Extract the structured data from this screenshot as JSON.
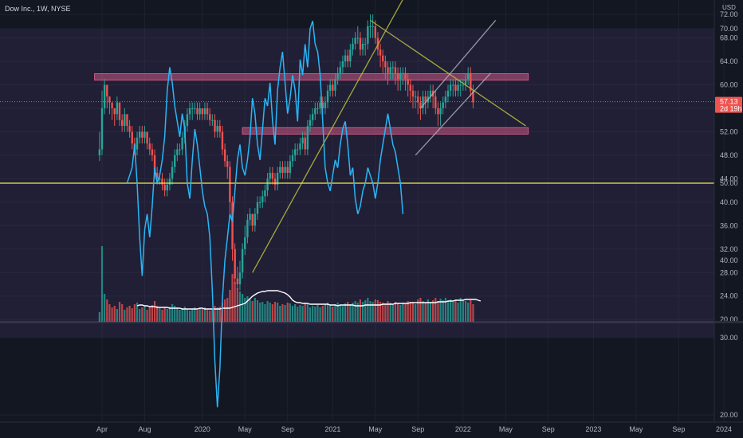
{
  "title": "Dow Inc., 1W, NYSE",
  "currency": "USD",
  "last_price": {
    "value": "57.13",
    "countdown": "2d 19h"
  },
  "colors": {
    "background": "#131722",
    "grid": "#1e222d",
    "up": "#26a69a",
    "down": "#ef5350",
    "zone": "#f06292",
    "trend": "#b5b83c",
    "channel": "#b4b7bf",
    "ma": "#ffffff",
    "rsi": "#29b6f6",
    "rsi_mid": "#f5e94b",
    "rsi_band": "#7e57c2"
  },
  "chart_data": [
    {
      "type": "candlestick",
      "x_tick_labels": [
        "Apr",
        "Aug",
        "2020",
        "May",
        "Sep",
        "2021",
        "May",
        "Sep",
        "2022",
        "May",
        "Sep",
        "2023",
        "May",
        "Sep",
        "2024"
      ],
      "x_tick_weeks": [
        0,
        17,
        40,
        57,
        74,
        92,
        109,
        126,
        144,
        161,
        178,
        196,
        213,
        230,
        248
      ],
      "y_ticks": [
        "72.00",
        "68.00",
        "64.00",
        "60.00",
        "56.00",
        "52.00",
        "48.00",
        "44.00",
        "40.00",
        "36.00",
        "32.00",
        "28.00",
        "24.00",
        "20.00"
      ],
      "ylim": [
        18,
        74
      ],
      "grid": true,
      "series": [
        {
          "name": "price",
          "x_start_week": -1,
          "close": [
            49,
            56,
            60,
            58,
            57,
            56,
            55,
            57,
            54,
            53,
            55,
            53,
            52,
            50,
            49,
            51,
            52,
            51,
            52,
            50,
            49,
            48,
            45,
            44,
            44,
            43,
            42,
            43,
            44,
            46,
            48,
            49,
            49,
            51,
            53,
            55,
            56,
            56,
            56,
            55,
            56,
            55,
            56,
            55,
            54,
            54,
            52,
            53,
            52,
            49,
            47,
            46,
            40,
            32,
            27,
            26,
            28,
            32,
            34,
            37,
            38,
            36,
            38,
            40,
            40,
            41,
            42,
            44,
            45,
            44,
            43,
            45,
            46,
            45,
            46,
            45,
            47,
            48,
            49,
            49,
            50,
            51,
            49,
            53,
            54,
            55,
            56,
            56,
            57,
            56,
            57,
            59,
            60,
            59,
            61,
            62,
            63,
            64,
            65,
            64,
            66,
            67,
            68,
            68,
            66,
            67,
            67,
            70,
            70,
            70,
            68,
            66,
            65,
            64,
            63,
            62,
            63,
            63,
            62,
            61,
            62,
            62,
            61,
            60,
            59,
            58,
            58,
            57,
            56,
            58,
            57,
            58,
            59,
            58,
            56,
            55,
            56,
            57,
            58,
            59,
            60,
            60,
            59,
            60,
            60,
            60,
            61,
            62,
            59,
            57
          ],
          "wick_high": [
            52,
            59,
            61,
            60,
            58,
            57,
            56,
            58,
            57,
            55,
            56,
            55,
            54,
            53,
            51,
            52,
            53,
            53,
            53,
            52,
            51,
            50,
            49,
            46,
            45,
            45,
            44,
            44,
            45,
            47,
            49,
            50,
            50,
            52,
            54,
            56,
            57,
            57,
            57,
            57,
            57,
            56,
            57,
            57,
            56,
            55,
            55,
            54,
            54,
            53,
            50,
            48,
            47,
            41,
            33,
            29,
            30,
            33,
            36,
            38,
            39,
            38,
            39,
            41,
            41,
            42,
            43,
            45,
            46,
            46,
            45,
            46,
            47,
            47,
            47,
            47,
            48,
            49,
            50,
            50,
            51,
            52,
            52,
            54,
            55,
            56,
            57,
            57,
            58,
            58,
            58,
            60,
            61,
            61,
            62,
            63,
            64,
            65,
            66,
            66,
            67,
            68,
            69,
            70,
            69,
            68,
            68,
            71,
            72,
            72,
            71,
            69,
            67,
            66,
            65,
            64,
            64,
            64,
            64,
            63,
            63,
            63,
            63,
            62,
            61,
            60,
            59,
            59,
            58,
            59,
            59,
            59,
            60,
            60,
            59,
            57,
            57,
            58,
            59,
            60,
            61,
            61,
            61,
            61,
            61,
            61,
            62,
            63,
            63,
            60
          ],
          "wick_low": [
            47,
            48,
            55,
            56,
            55,
            54,
            53,
            54,
            53,
            52,
            52,
            52,
            51,
            49,
            48,
            48,
            50,
            50,
            50,
            49,
            48,
            47,
            44,
            43,
            43,
            42,
            41,
            41,
            42,
            43,
            45,
            47,
            48,
            48,
            50,
            52,
            54,
            54,
            55,
            54,
            54,
            54,
            54,
            54,
            53,
            53,
            51,
            51,
            51,
            48,
            46,
            44,
            38,
            30,
            26,
            25,
            25,
            27,
            31,
            33,
            36,
            35,
            35,
            37,
            39,
            39,
            40,
            41,
            43,
            43,
            42,
            42,
            44,
            44,
            44,
            44,
            44,
            46,
            47,
            48,
            48,
            49,
            48,
            48,
            52,
            53,
            54,
            55,
            55,
            55,
            55,
            56,
            58,
            58,
            58,
            60,
            61,
            62,
            63,
            63,
            63,
            65,
            66,
            67,
            65,
            65,
            65,
            66,
            68,
            68,
            67,
            65,
            63,
            62,
            61,
            60,
            61,
            61,
            60,
            59,
            59,
            60,
            59,
            58,
            57,
            56,
            56,
            55,
            54,
            55,
            55,
            56,
            57,
            56,
            55,
            53,
            53,
            55,
            56,
            57,
            58,
            58,
            58,
            58,
            58,
            59,
            59,
            60,
            58,
            56
          ]
        },
        {
          "name": "volume",
          "values": [
            0.12,
            0.95,
            0.35,
            0.28,
            0.22,
            0.18,
            0.2,
            0.16,
            0.25,
            0.22,
            0.15,
            0.18,
            0.2,
            0.17,
            0.22,
            0.24,
            0.16,
            0.18,
            0.2,
            0.15,
            0.19,
            0.21,
            0.26,
            0.2,
            0.17,
            0.15,
            0.18,
            0.16,
            0.19,
            0.22,
            0.2,
            0.18,
            0.15,
            0.17,
            0.19,
            0.16,
            0.14,
            0.16,
            0.18,
            0.15,
            0.17,
            0.16,
            0.18,
            0.15,
            0.14,
            0.16,
            0.2,
            0.18,
            0.19,
            0.24,
            0.28,
            0.3,
            0.4,
            0.6,
            0.5,
            0.42,
            0.38,
            0.35,
            0.3,
            0.32,
            0.28,
            0.26,
            0.3,
            0.27,
            0.24,
            0.25,
            0.22,
            0.26,
            0.24,
            0.22,
            0.25,
            0.24,
            0.2,
            0.22,
            0.21,
            0.24,
            0.23,
            0.2,
            0.22,
            0.19,
            0.21,
            0.2,
            0.24,
            0.22,
            0.18,
            0.2,
            0.19,
            0.21,
            0.18,
            0.2,
            0.22,
            0.24,
            0.21,
            0.19,
            0.22,
            0.24,
            0.21,
            0.2,
            0.23,
            0.25,
            0.22,
            0.24,
            0.26,
            0.24,
            0.28,
            0.25,
            0.27,
            0.3,
            0.26,
            0.25,
            0.28,
            0.27,
            0.25,
            0.24,
            0.23,
            0.26,
            0.24,
            0.22,
            0.25,
            0.23,
            0.21,
            0.24,
            0.22,
            0.26,
            0.25,
            0.24,
            0.22,
            0.28,
            0.3,
            0.26,
            0.24,
            0.28,
            0.25,
            0.27,
            0.3,
            0.26,
            0.29,
            0.27,
            0.3,
            0.26,
            0.28,
            0.25,
            0.27,
            0.24,
            0.3,
            0.28,
            0.26,
            0.24,
            0.27,
            0.22
          ]
        },
        {
          "name": "volume_ma",
          "x_start_week": 14,
          "values": [
            0.2,
            0.21,
            0.21,
            0.2,
            0.2,
            0.19,
            0.19,
            0.19,
            0.18,
            0.18,
            0.18,
            0.18,
            0.18,
            0.17,
            0.17,
            0.17,
            0.17,
            0.17,
            0.16,
            0.16,
            0.16,
            0.16,
            0.16,
            0.16,
            0.16,
            0.17,
            0.17,
            0.16,
            0.16,
            0.16,
            0.16,
            0.16,
            0.16,
            0.16,
            0.17,
            0.17,
            0.17,
            0.17,
            0.18,
            0.19,
            0.2,
            0.21,
            0.22,
            0.23,
            0.26,
            0.29,
            0.32,
            0.34,
            0.36,
            0.37,
            0.38,
            0.38,
            0.39,
            0.39,
            0.39,
            0.39,
            0.39,
            0.38,
            0.37,
            0.36,
            0.34,
            0.31,
            0.27,
            0.25,
            0.24,
            0.24,
            0.23,
            0.23,
            0.23,
            0.22,
            0.22,
            0.22,
            0.22,
            0.22,
            0.22,
            0.22,
            0.22,
            0.21,
            0.21,
            0.21,
            0.2,
            0.21,
            0.21,
            0.21,
            0.21,
            0.21,
            0.21,
            0.2,
            0.2,
            0.2,
            0.2,
            0.21,
            0.21,
            0.21,
            0.21,
            0.21,
            0.21,
            0.21,
            0.22,
            0.22,
            0.22,
            0.22,
            0.22,
            0.23,
            0.23,
            0.23,
            0.23,
            0.23,
            0.23,
            0.24,
            0.24,
            0.24,
            0.24,
            0.24,
            0.24,
            0.24,
            0.24,
            0.24,
            0.24,
            0.24,
            0.25,
            0.25,
            0.25,
            0.25,
            0.26,
            0.26,
            0.26,
            0.27,
            0.27,
            0.27,
            0.27,
            0.28,
            0.28,
            0.28,
            0.28,
            0.28,
            0.27,
            0.26
          ]
        }
      ],
      "annotations": [
        {
          "type": "zone",
          "from_week": -3,
          "to_week": 170,
          "low": 60.8,
          "high": 61.9
        },
        {
          "type": "zone",
          "from_week": 56,
          "to_week": 170,
          "low": 51.6,
          "high": 52.7
        },
        {
          "type": "trendline",
          "from": [
            60,
            28
          ],
          "to": [
            127,
            80
          ]
        },
        {
          "type": "trendline",
          "from": [
            107,
            71
          ],
          "to": [
            169,
            53
          ]
        },
        {
          "type": "trendline",
          "from": [
            125,
            48
          ],
          "to": [
            155,
            62
          ]
        },
        {
          "type": "trendline",
          "from": [
            127,
            56
          ],
          "to": [
            157,
            71
          ]
        }
      ]
    },
    {
      "type": "line",
      "name": "rsi",
      "x_start_week": 10,
      "ylim": [
        17,
        77
      ],
      "y_ticks": [
        "70.00",
        "60.00",
        "50.00",
        "40.00",
        "30.00",
        "20.00"
      ],
      "band": [
        30,
        70
      ],
      "midline": 50,
      "values": [
        50,
        51,
        52,
        55,
        50,
        43,
        38,
        44,
        46,
        43,
        47,
        52,
        50,
        51,
        53,
        56,
        62,
        65,
        63,
        60,
        58,
        56,
        59,
        57,
        50,
        48,
        53,
        57,
        55,
        52,
        49,
        47,
        46,
        43,
        36,
        27,
        21,
        26,
        35,
        40,
        43,
        46,
        45,
        49,
        53,
        55,
        52,
        51,
        53,
        56,
        61,
        59,
        55,
        53,
        57,
        61,
        60,
        63,
        58,
        55,
        62,
        65,
        67,
        63,
        59,
        61,
        64,
        62,
        58,
        66,
        64,
        68,
        65,
        70,
        71,
        68,
        67,
        64,
        58,
        52,
        50,
        49,
        51,
        53,
        52,
        55,
        57,
        58,
        55,
        51,
        52,
        48,
        46,
        47,
        49,
        50,
        52,
        51,
        50,
        48,
        50,
        53,
        55,
        57,
        59,
        57,
        55,
        54,
        52,
        50,
        46
      ]
    }
  ]
}
